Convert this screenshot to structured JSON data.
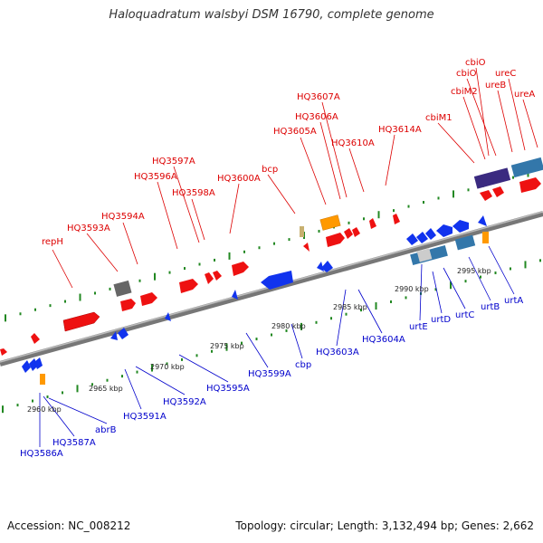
{
  "title": "Haloquadratum walsbyi DSM 16790, complete genome",
  "footer": {
    "accession": "Accession: NC_008212",
    "summary": "Topology: circular; Length: 3,132,494 bp; Genes: 2,662"
  },
  "colors": {
    "forward_label": "#dd0000",
    "reverse_label": "#0000cc",
    "forward_gene": "#ee1111",
    "reverse_gene": "#1133ee",
    "backbone": "#888888",
    "tick": "#228822"
  },
  "scale_labels": [
    "2960 kbp",
    "2965 kbp",
    "2970 kbp",
    "2975 kbp",
    "2980 kbp",
    "2985 kbp",
    "2990 kbp",
    "2995 kbp"
  ],
  "forward_labels": [
    "repH",
    "HQ3593A",
    "HQ3594A",
    "HQ3596A",
    "HQ3597A",
    "HQ3598A",
    "HQ3600A",
    "bcp",
    "HQ3605A",
    "HQ3606A",
    "HQ3607A",
    "HQ3610A",
    "HQ3614A",
    "cbiM1",
    "cbiM2",
    "cbiO",
    "cbiO",
    "ureB",
    "ureC",
    "ureA"
  ],
  "reverse_labels": [
    "HQ3586A",
    "HQ3587A",
    "abrB",
    "HQ3591A",
    "HQ3592A",
    "HQ3595A",
    "HQ3599A",
    "cbp",
    "HQ3603A",
    "HQ3604A",
    "urtE",
    "urtD",
    "urtC",
    "urtB",
    "urtA"
  ]
}
